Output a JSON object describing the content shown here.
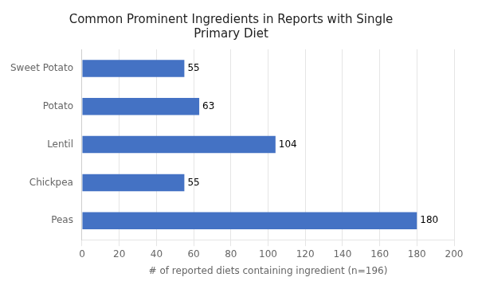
{
  "chart_data": {
    "type": "bar",
    "orientation": "horizontal",
    "title": "Common Prominent Ingredients in Reports with Single\nPrimary Diet",
    "categories": [
      "Sweet Potato",
      "Potato",
      "Lentil",
      "Chickpea",
      "Peas"
    ],
    "values": [
      55,
      63,
      104,
      55,
      180
    ],
    "color": "#4472C4",
    "xlabel": "# of reported diets containing ingredient (n=196)",
    "xlim": [
      0,
      200
    ],
    "xticks": [
      0,
      20,
      40,
      60,
      80,
      100,
      120,
      140,
      160,
      180,
      200
    ],
    "grid": true,
    "data_labels": true
  }
}
